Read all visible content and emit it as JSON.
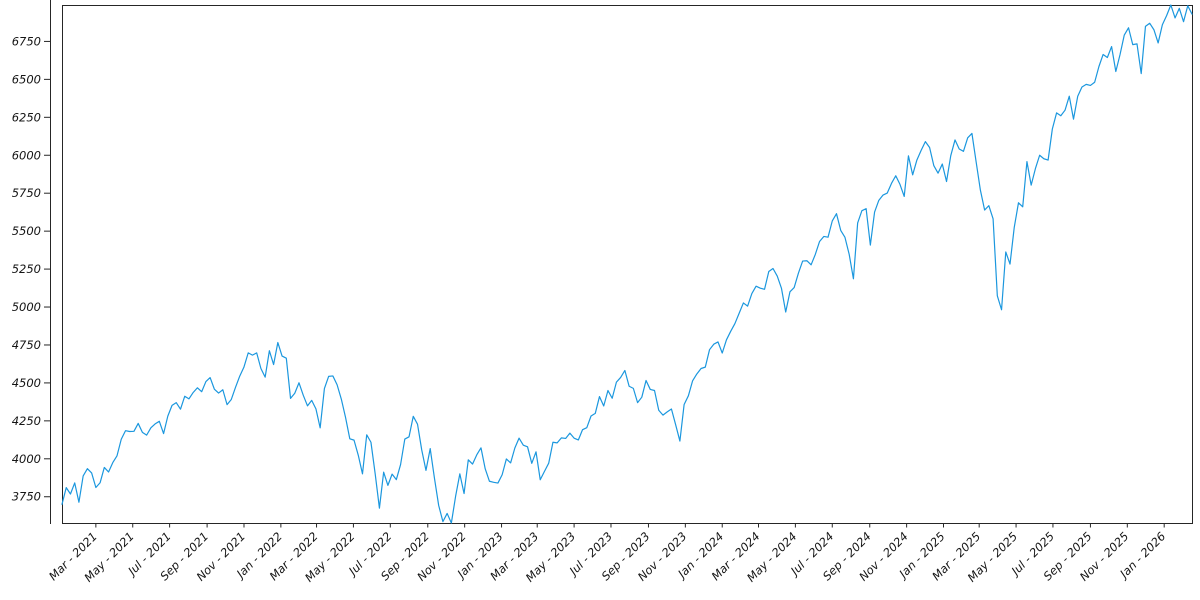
{
  "chart_data": {
    "type": "line",
    "title": "",
    "xlabel": "",
    "ylabel": "",
    "grid": false,
    "legend": false,
    "background": "#ffffff",
    "axis_color": "#262626",
    "tick_label_color": "#151515",
    "x_tick_labels": [
      "Mar - 2021",
      "May - 2021",
      "Jul - 2021",
      "Sep - 2021",
      "Nov - 2021",
      "Jan - 2022",
      "Mar - 2022",
      "May - 2022",
      "Jul - 2022",
      "Sep - 2022",
      "Nov - 2022",
      "Jan - 2023",
      "Mar - 2023",
      "May - 2023",
      "Jul - 2023",
      "Sep - 2023",
      "Nov - 2023",
      "Jan - 2024",
      "Mar - 2024",
      "May - 2024",
      "Jul - 2024",
      "Sep - 2024",
      "Nov - 2024",
      "Jan - 2025",
      "Mar - 2025",
      "May - 2025",
      "Jul - 2025",
      "Sep - 2025",
      "Nov - 2025",
      "Jan - 2026"
    ],
    "y_tick_labels": [
      3750,
      4000,
      4250,
      4500,
      4750,
      5000,
      5250,
      5500,
      5750,
      6000,
      6250,
      6500,
      6750
    ],
    "ylim": [
      3577,
      6990
    ],
    "x_start_date": "2021-01-04",
    "x_interval_days": 7,
    "series": [
      {
        "name": "index-price",
        "color": "#1b97de",
        "values": [
          3700,
          3810,
          3768,
          3841,
          3714,
          3887,
          3935,
          3907,
          3811,
          3842,
          3943,
          3913,
          3975,
          4020,
          4129,
          4185,
          4180,
          4181,
          4233,
          4174,
          4156,
          4204,
          4230,
          4247,
          4166,
          4281,
          4352,
          4370,
          4327,
          4412,
          4395,
          4437,
          4468,
          4442,
          4509,
          4535,
          4459,
          4433,
          4455,
          4357,
          4391,
          4471,
          4545,
          4605,
          4698,
          4683,
          4698,
          4595,
          4538,
          4712,
          4621,
          4766,
          4677,
          4663,
          4398,
          4432,
          4501,
          4419,
          4349,
          4385,
          4329,
          4204,
          4463,
          4543,
          4546,
          4488,
          4393,
          4272,
          4132,
          4123,
          4024,
          3901,
          4158,
          4109,
          3901,
          3675,
          3912,
          3825,
          3899,
          3863,
          3962,
          4130,
          4145,
          4280,
          4228,
          4058,
          3924,
          4067,
          3873,
          3693,
          3586,
          3640,
          3577,
          3753,
          3901,
          3771,
          3993,
          3965,
          4026,
          4072,
          3934,
          3852,
          3845,
          3840,
          3895,
          3999,
          3973,
          4071,
          4136,
          4090,
          4079,
          3970,
          4046,
          3862,
          3917,
          3971,
          4109,
          4105,
          4138,
          4134,
          4169,
          4136,
          4124,
          4192,
          4205,
          4282,
          4299,
          4410,
          4348,
          4450,
          4399,
          4505,
          4536,
          4582,
          4478,
          4464,
          4370,
          4406,
          4516,
          4457,
          4450,
          4320,
          4288,
          4309,
          4328,
          4224,
          4117,
          4358,
          4415,
          4514,
          4559,
          4595,
          4604,
          4719,
          4755,
          4770,
          4697,
          4784,
          4840,
          4891,
          4959,
          5027,
          5006,
          5089,
          5137,
          5124,
          5117,
          5234,
          5254,
          5204,
          5123,
          4967,
          5100,
          5128,
          5223,
          5303,
          5305,
          5278,
          5347,
          5432,
          5465,
          5460,
          5567,
          5615,
          5505,
          5459,
          5347,
          5186,
          5554,
          5635,
          5648,
          5408,
          5626,
          5703,
          5738,
          5751,
          5815,
          5865,
          5808,
          5729,
          5996,
          5871,
          5969,
          6032,
          6090,
          6051,
          5931,
          5882,
          5942,
          5827,
          5997,
          6101,
          6041,
          6026,
          6115,
          6144,
          5955,
          5770,
          5639,
          5668,
          5581,
          5074,
          4982,
          5363,
          5283,
          5525,
          5687,
          5660,
          5958,
          5803,
          5912,
          6000,
          5977,
          5968,
          6173,
          6279,
          6260,
          6297,
          6389,
          6238,
          6389,
          6450,
          6467,
          6460,
          6481,
          6584,
          6664,
          6644,
          6716,
          6552,
          6664,
          6792,
          6840,
          6729,
          6734,
          6538,
          6849,
          6870,
          6827,
          6740,
          6860,
          6920,
          6990,
          6905,
          6968,
          6880,
          6985,
          6930
        ]
      }
    ]
  }
}
